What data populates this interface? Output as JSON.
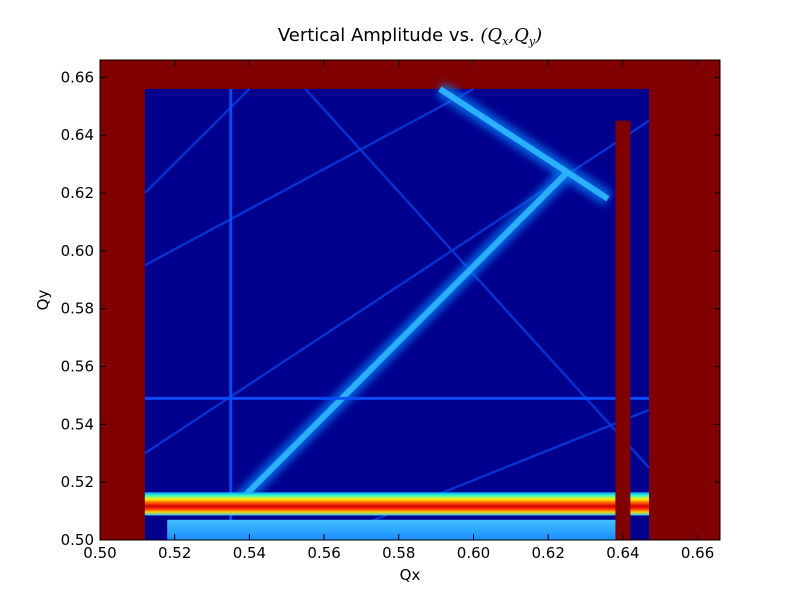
{
  "chart_data": {
    "type": "heatmap",
    "title_prefix": "Vertical Amplitude vs. ",
    "title_math": "(Q",
    "title_sub_x": "x",
    "title_sep": ",Q",
    "title_sub_y": "y",
    "title_close": ")",
    "xlabel": "Qx",
    "ylabel": "Qy",
    "xlim": [
      0.5,
      0.666
    ],
    "ylim": [
      0.5,
      0.666
    ],
    "xticks": [
      0.5,
      0.52,
      0.54,
      0.56,
      0.58,
      0.6,
      0.62,
      0.64,
      0.66
    ],
    "yticks": [
      0.5,
      0.52,
      0.54,
      0.56,
      0.58,
      0.6,
      0.62,
      0.64,
      0.66
    ],
    "xtick_labels": [
      "0.50",
      "0.52",
      "0.54",
      "0.56",
      "0.58",
      "0.60",
      "0.62",
      "0.64",
      "0.66"
    ],
    "ytick_labels": [
      "0.50",
      "0.52",
      "0.54",
      "0.56",
      "0.58",
      "0.60",
      "0.62",
      "0.64",
      "0.66"
    ],
    "colormap": "jet",
    "colors": {
      "saturated": "#800000",
      "background": "#00008f",
      "resonance_line": "#0a50ff",
      "main_band": "#2ab0ff",
      "hot_band_red": "#ff3000",
      "hot_band_yellow": "#ffee00",
      "hot_band_cyan": "#30d0ff"
    },
    "data_region": {
      "qx": [
        0.512,
        0.647
      ],
      "qy": [
        0.5,
        0.656
      ]
    },
    "saturated_stripe_qx": [
      0.638,
      0.642
    ],
    "resonance_lines": [
      {
        "name": "main-diagonal",
        "from": [
          0.537,
          0.513
        ],
        "to": [
          0.625,
          0.627
        ],
        "strength": "strong"
      },
      {
        "name": "horizontal",
        "from": [
          0.512,
          0.549
        ],
        "to": [
          0.647,
          0.549
        ],
        "strength": "medium"
      },
      {
        "name": "vertical",
        "from": [
          0.535,
          0.5
        ],
        "to": [
          0.535,
          0.656
        ],
        "strength": "medium"
      },
      {
        "name": "top-curve",
        "from": [
          0.591,
          0.656
        ],
        "to": [
          0.636,
          0.618
        ],
        "strength": "strong"
      },
      {
        "name": "diag-2",
        "from": [
          0.512,
          0.53
        ],
        "to": [
          0.647,
          0.645
        ],
        "strength": "weak"
      },
      {
        "name": "diag-3",
        "from": [
          0.555,
          0.656
        ],
        "to": [
          0.647,
          0.525
        ],
        "strength": "weak"
      },
      {
        "name": "diag-4",
        "from": [
          0.512,
          0.595
        ],
        "to": [
          0.6,
          0.656
        ],
        "strength": "weak"
      },
      {
        "name": "diag-5",
        "from": [
          0.56,
          0.5
        ],
        "to": [
          0.647,
          0.545
        ],
        "strength": "weak"
      },
      {
        "name": "diag-6",
        "from": [
          0.54,
          0.656
        ],
        "to": [
          0.512,
          0.62
        ],
        "strength": "weak"
      }
    ]
  }
}
